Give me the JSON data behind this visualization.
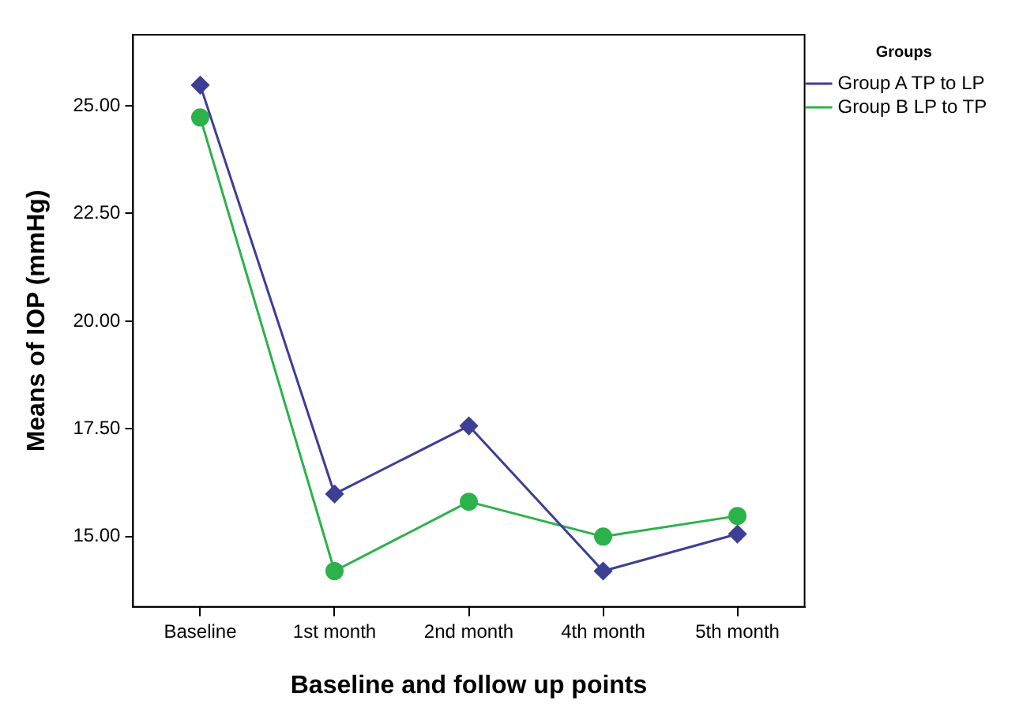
{
  "chart_data": {
    "type": "line",
    "xlabel": "Baseline and follow up points",
    "ylabel": "Means of IOP (mmHg)",
    "legend_title": "Groups",
    "legend": "top right",
    "grid": false,
    "categories": [
      "Baseline",
      "1st month",
      "2nd month",
      "4th month",
      "5th month"
    ],
    "ylim": [
      13.37,
      26.65
    ],
    "yticks": [
      {
        "value": 15,
        "label": "15.00"
      },
      {
        "value": 17.5,
        "label": "17.50"
      },
      {
        "value": 20,
        "label": "20.00"
      },
      {
        "value": 22.5,
        "label": "22.50"
      },
      {
        "value": 25,
        "label": "25.00"
      }
    ],
    "series": [
      {
        "name": "Group A TP to LP",
        "color": "#3c3f93",
        "marker": "diamond",
        "values": [
          25.48,
          15.99,
          17.57,
          14.2,
          15.06
        ]
      },
      {
        "name": "Group B LP to TP",
        "color": "#2bb24a",
        "marker": "circle",
        "values": [
          24.73,
          14.2,
          15.81,
          15.0,
          15.48
        ]
      }
    ]
  }
}
